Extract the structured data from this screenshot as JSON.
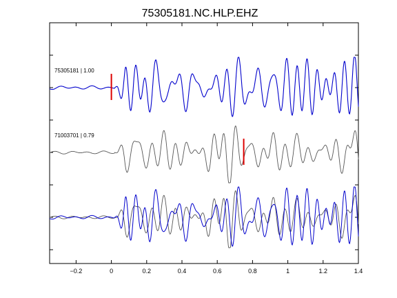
{
  "chart_data": {
    "type": "line",
    "title": "75305181.NC.HLP.EHZ",
    "xlabel": "",
    "ylabel": "",
    "xlim": [
      -0.35,
      1.4
    ],
    "grid": false,
    "x_ticks": [
      -0.2,
      0,
      0.2,
      0.4,
      0.6,
      0.8,
      1,
      1.2,
      1.4
    ],
    "x_tick_labels": [
      "−0.2",
      "0",
      "0.2",
      "0.4",
      "0.6",
      "0.8",
      "1",
      "1.2",
      "1.4"
    ],
    "colors": {
      "primary": "#0000cc",
      "secondary": "#555555",
      "pick": "#dd0000"
    },
    "traces": [
      {
        "label": "75305181 | 1.00",
        "color": "primary",
        "pick_time": 0.0,
        "seed": 3,
        "noise_amp": 0.06,
        "amp": 1.0,
        "overlay": false
      },
      {
        "label": "71003701 | 0.79",
        "color": "secondary",
        "pick_time": 0.75,
        "seed": 11,
        "noise_amp": 0.05,
        "amp": 0.95,
        "overlay": false
      },
      {
        "label": "",
        "color": "overlay",
        "pick_time": null,
        "seed": 3,
        "noise_amp": 0.06,
        "amp": 1.0,
        "overlay": true
      }
    ]
  }
}
